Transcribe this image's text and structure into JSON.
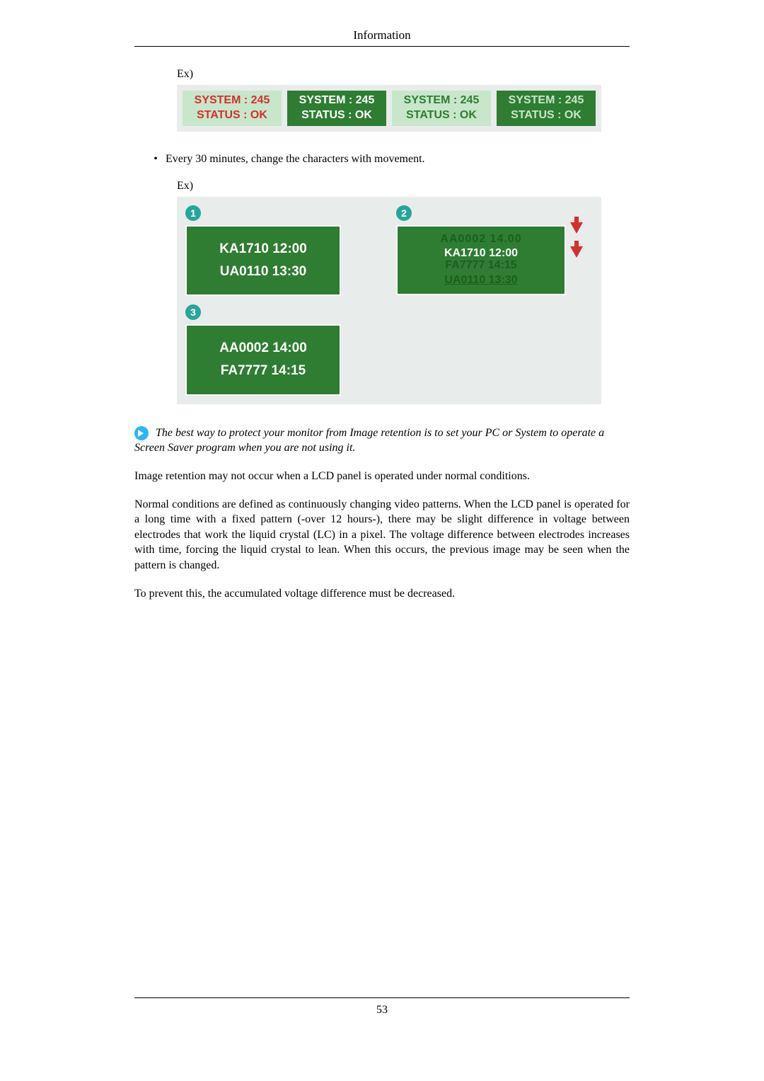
{
  "header": {
    "title": "Information"
  },
  "example1": {
    "label": "Ex)",
    "boxes": [
      {
        "line1": "SYSTEM : 245",
        "line2": "STATUS : OK"
      },
      {
        "line1": "SYSTEM : 245",
        "line2": "STATUS : OK"
      },
      {
        "line1": "SYSTEM : 245",
        "line2": "STATUS : OK"
      },
      {
        "line1": "SYSTEM : 245",
        "line2": "STATUS : OK"
      }
    ]
  },
  "bullet": {
    "text": "Every 30 minutes, change the characters with movement."
  },
  "example2": {
    "label": "Ex)",
    "panel1": {
      "badge": "1",
      "line1": "KA1710  12:00",
      "line2": "UA0110  13:30"
    },
    "panel2": {
      "badge": "2",
      "l1": "AA0002   14.00",
      "l2": "KA1710  12:00",
      "l3": "FA7777  14:15",
      "l4": "UA0110  13:30"
    },
    "panel3": {
      "badge": "3",
      "line1": "AA0002  14:00",
      "line2": "FA7777  14:15"
    }
  },
  "note": {
    "text": " The best way to protect your monitor from Image retention is to set your PC or System to operate a Screen Saver program when you are not using it."
  },
  "paragraphs": {
    "p1": "Image retention may not occur when a LCD panel is operated under normal conditions.",
    "p2": "Normal conditions are defined as continuously changing video patterns. When the LCD panel is operated for a long time with a fixed pattern (-over 12 hours-), there may be slight difference in voltage between electrodes that work the liquid crystal (LC) in a pixel. The voltage difference between electrodes increases with time, forcing the liquid crystal to lean. When this occurs, the previous image may be seen when the pattern is changed.",
    "p3": "To prevent this, the accumulated voltage difference must be decreased."
  },
  "footer": {
    "page": "53"
  },
  "colors": {
    "green_dark": "#2e7d32",
    "green_light": "#c8e6c9",
    "red": "#d32f2f",
    "teal": "#26a69a",
    "blue_icon": "#29b6f6",
    "panel_bg": "#e8ecea"
  }
}
